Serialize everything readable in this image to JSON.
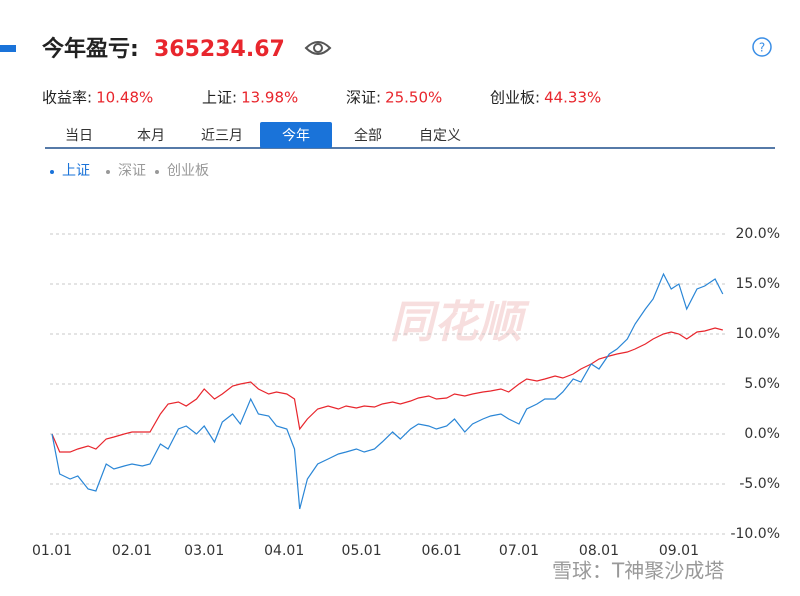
{
  "header": {
    "title": "今年盈亏:",
    "amount": "365234.67"
  },
  "stats": [
    {
      "label": "收益率:",
      "value": "10.48%"
    },
    {
      "label": "上证:",
      "value": "13.98%"
    },
    {
      "label": "深证:",
      "value": "25.50%"
    },
    {
      "label": "创业板:",
      "value": "44.33%"
    }
  ],
  "tabs": [
    "当日",
    "本月",
    "近三月",
    "今年",
    "全部",
    "自定义"
  ],
  "active_tab": 3,
  "watermarks": [
    "同花顺",
    "雪球：T神聚沙成塔"
  ],
  "chart_data": {
    "type": "line",
    "legend": [
      {
        "name": "上证",
        "active": true
      },
      {
        "name": "深证",
        "active": false
      },
      {
        "name": "创业板",
        "active": false
      }
    ],
    "x": [
      "01.01",
      "01.04",
      "01.08",
      "01.11",
      "01.15",
      "01.18",
      "01.22",
      "01.25",
      "01.29",
      "02.01",
      "02.05",
      "02.08",
      "02.12",
      "02.15",
      "02.19",
      "02.22",
      "02.26",
      "03.01",
      "03.05",
      "03.08",
      "03.12",
      "03.15",
      "03.19",
      "03.22",
      "03.26",
      "03.29",
      "04.02",
      "04.05",
      "04.07",
      "04.10",
      "04.14",
      "04.18",
      "04.22",
      "04.25",
      "04.29",
      "05.02",
      "05.06",
      "05.09",
      "05.13",
      "05.16",
      "05.20",
      "05.23",
      "05.27",
      "05.30",
      "06.03",
      "06.06",
      "06.10",
      "06.13",
      "06.17",
      "06.20",
      "06.24",
      "06.27",
      "07.01",
      "07.04",
      "07.08",
      "07.11",
      "07.15",
      "07.18",
      "07.22",
      "07.25",
      "07.29",
      "08.01",
      "08.05",
      "08.08",
      "08.12",
      "08.15",
      "08.19",
      "08.22",
      "08.26",
      "08.29",
      "09.01",
      "09.04",
      "09.08",
      "09.11",
      "09.15",
      "09.18"
    ],
    "series": [
      {
        "color": "#e8262d",
        "values": [
          0,
          -1.8,
          -1.8,
          -1.5,
          -1.2,
          -1.5,
          -0.5,
          -0.3,
          0,
          0.2,
          0.2,
          0.2,
          2.0,
          3.0,
          3.2,
          2.8,
          3.5,
          4.5,
          3.5,
          4.0,
          4.8,
          5.0,
          5.2,
          4.5,
          4.0,
          4.2,
          4.0,
          3.5,
          0.5,
          1.5,
          2.5,
          2.8,
          2.5,
          2.8,
          2.6,
          2.8,
          2.7,
          3.0,
          3.2,
          3.0,
          3.3,
          3.6,
          3.8,
          3.5,
          3.6,
          4.0,
          3.8,
          4.0,
          4.2,
          4.3,
          4.5,
          4.2,
          5.0,
          5.5,
          5.3,
          5.5,
          5.8,
          5.6,
          6.0,
          6.5,
          7.0,
          7.5,
          7.8,
          8.0,
          8.2,
          8.5,
          9.0,
          9.5,
          10.0,
          10.2,
          10.0,
          9.5,
          10.2,
          10.3,
          10.6,
          10.4
        ]
      },
      {
        "color": "#2a86d6",
        "values": [
          0,
          -4.0,
          -4.5,
          -4.2,
          -5.5,
          -5.7,
          -3.0,
          -3.5,
          -3.2,
          -3.0,
          -3.2,
          -3.0,
          -1.0,
          -1.5,
          0.5,
          0.8,
          0,
          0.8,
          -0.8,
          1.2,
          2.0,
          1.0,
          3.5,
          2.0,
          1.8,
          0.8,
          0.5,
          -1.5,
          -7.5,
          -4.5,
          -3.0,
          -2.5,
          -2.0,
          -1.8,
          -1.5,
          -1.8,
          -1.5,
          -0.8,
          0.2,
          -0.5,
          0.5,
          1.0,
          0.8,
          0.5,
          0.8,
          1.5,
          0.2,
          1.0,
          1.5,
          1.8,
          2.0,
          1.5,
          1.0,
          2.5,
          3.0,
          3.5,
          3.5,
          4.2,
          5.5,
          5.2,
          7.0,
          6.5,
          8.0,
          8.5,
          9.5,
          11.0,
          12.5,
          13.5,
          16.0,
          14.5,
          15.0,
          12.5,
          14.5,
          14.8,
          15.5,
          14.0
        ]
      }
    ],
    "xticks": [
      "01.01",
      "02.01",
      "03.01",
      "04.01",
      "05.01",
      "06.01",
      "07.01",
      "08.01",
      "09.01"
    ],
    "ylim": [
      -10,
      20
    ],
    "yticks": [
      {
        "value": -10,
        "label": "-10.0%"
      },
      {
        "value": -5,
        "label": "-5.0%"
      },
      {
        "value": 0,
        "label": "0.0%"
      },
      {
        "value": 5,
        "label": "5.0%"
      },
      {
        "value": 10,
        "label": "10.0%"
      },
      {
        "value": 15,
        "label": "15.0%"
      },
      {
        "value": 20,
        "label": "20.0%"
      }
    ],
    "grid": true
  }
}
